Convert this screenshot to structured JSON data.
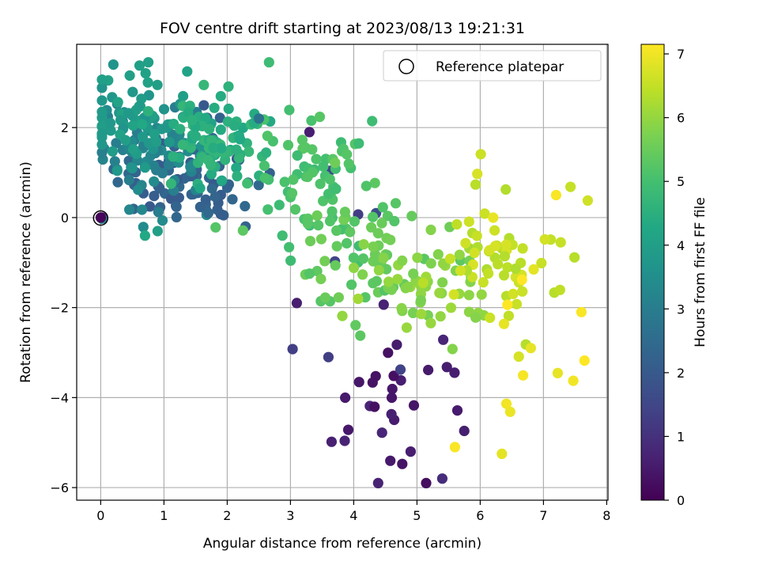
{
  "chart_data": {
    "type": "scatter",
    "title": "FOV centre drift starting at 2023/08/13 19:21:31",
    "xlabel": "Angular distance from reference (arcmin)",
    "ylabel": "Rotation from reference (arcmin)",
    "xlim": [
      -0.38,
      8.02
    ],
    "ylim": [
      -6.28,
      3.85
    ],
    "xticks": [
      0,
      1,
      2,
      3,
      4,
      5,
      6,
      7,
      8
    ],
    "yticks": [
      -6,
      -4,
      -2,
      0,
      2
    ],
    "grid": true,
    "legend": {
      "placement": "top-right",
      "entries": [
        {
          "label": "Reference platepar",
          "marker": "open-circle"
        }
      ]
    },
    "colorbar": {
      "label": "Hours from first FF file",
      "range": [
        0,
        7.15
      ],
      "ticks": [
        0,
        1,
        2,
        3,
        4,
        5,
        6,
        7
      ],
      "colormap": "viridis"
    },
    "reference_point": {
      "x": 0,
      "y": 0
    },
    "clusters": [
      {
        "name": "t0.1",
        "t": 0.1,
        "n": 1,
        "cx": 0,
        "cy": 0,
        "sx": 0,
        "sy": 0
      },
      {
        "name": "t0.5",
        "t": 0.5,
        "n": 30,
        "cx": 4.8,
        "cy": -3.9,
        "sx": 0.55,
        "sy": 1.2
      },
      {
        "name": "t1.5",
        "t": 1.5,
        "n": 6,
        "cx": 3.7,
        "cy": -1.5,
        "sx": 0.6,
        "sy": 1.5
      },
      {
        "name": "t2.2",
        "t": 2.2,
        "n": 80,
        "cx": 1.4,
        "cy": 0.9,
        "sx": 0.55,
        "sy": 0.55
      },
      {
        "name": "t3.2",
        "t": 3.2,
        "n": 70,
        "cx": 0.8,
        "cy": 1.6,
        "sx": 0.5,
        "sy": 0.7
      },
      {
        "name": "t3.9",
        "t": 3.9,
        "n": 70,
        "cx": 0.6,
        "cy": 2.2,
        "sx": 0.45,
        "sy": 0.5
      },
      {
        "name": "t4.5",
        "t": 4.5,
        "n": 80,
        "cx": 1.9,
        "cy": 1.7,
        "sx": 0.4,
        "sy": 0.45
      },
      {
        "name": "t5.1",
        "t": 5.1,
        "n": 70,
        "cx": 3.2,
        "cy": 0.7,
        "sx": 0.55,
        "sy": 0.8
      },
      {
        "name": "t5.4",
        "t": 5.4,
        "n": 60,
        "cx": 4.1,
        "cy": -0.7,
        "sx": 0.5,
        "sy": 0.7
      },
      {
        "name": "t5.9",
        "t": 5.9,
        "n": 60,
        "cx": 5.1,
        "cy": -1.5,
        "sx": 0.5,
        "sy": 0.6
      },
      {
        "name": "t6.5",
        "t": 6.5,
        "n": 60,
        "cx": 6.3,
        "cy": -0.9,
        "sx": 0.45,
        "sy": 0.8
      },
      {
        "name": "t7.1",
        "t": 7.1,
        "n": 12,
        "cx": 6.6,
        "cy": -2.6,
        "sx": 0.6,
        "sy": 1.5
      }
    ],
    "extra_points": [
      {
        "x": 0.0,
        "y": 0.0,
        "t": 0.1
      },
      {
        "x": 3.6,
        "y": -3.1,
        "t": 1.3
      },
      {
        "x": 5.4,
        "y": -5.8,
        "t": 0.9
      },
      {
        "x": 3.3,
        "y": 1.9,
        "t": 0.6
      },
      {
        "x": 1.7,
        "y": 0.1,
        "t": 2.4
      },
      {
        "x": 2.5,
        "y": 2.2,
        "t": 2.7
      },
      {
        "x": 0.9,
        "y": -0.3,
        "t": 4.0
      },
      {
        "x": 0.7,
        "y": -0.4,
        "t": 4.3
      },
      {
        "x": 5.6,
        "y": -5.1,
        "t": 7.1
      },
      {
        "x": 7.2,
        "y": 0.5,
        "t": 7.1
      },
      {
        "x": 7.6,
        "y": -2.1,
        "t": 7.1
      },
      {
        "x": 6.8,
        "y": -2.9,
        "t": 6.9
      },
      {
        "x": 0.2,
        "y": 3.4,
        "t": 3.7
      },
      {
        "x": 4.9,
        "y": -5.2,
        "t": 0.6
      },
      {
        "x": 3.1,
        "y": -1.9,
        "t": 0.6
      }
    ]
  }
}
